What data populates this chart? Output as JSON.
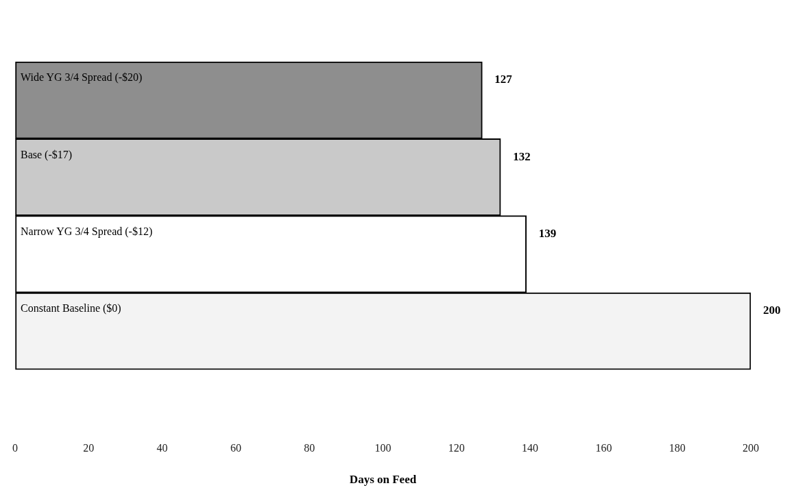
{
  "chart_data": {
    "type": "bar",
    "orientation": "horizontal",
    "xlabel": "Days on Feed",
    "categories": [
      "Wide YG 3/4 Spread (-$20)",
      "Base (-$17)",
      "Narrow YG 3/4 Spread (-$12)",
      "Constant Baseline ($0)"
    ],
    "values": [
      127,
      132,
      139,
      200
    ],
    "colors": [
      "#8e8e8e",
      "#c9c9c9",
      "#ffffff",
      "#f3f3f3"
    ],
    "data_labels": true,
    "xlim": [
      0,
      200
    ],
    "xticks": [
      0,
      20,
      40,
      60,
      80,
      100,
      120,
      140,
      160,
      180,
      200
    ],
    "legend": false,
    "grid": false
  }
}
